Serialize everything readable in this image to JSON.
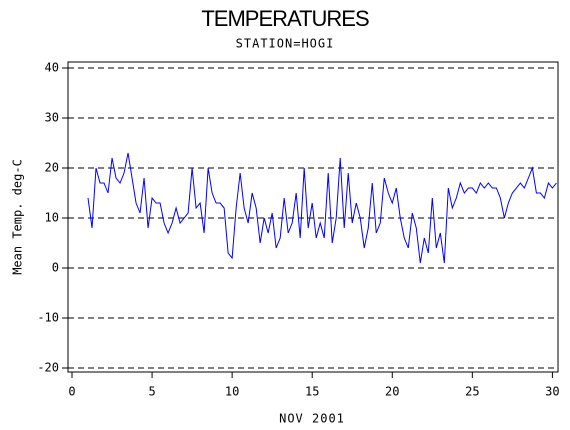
{
  "chart_data": {
    "type": "line",
    "title": "TEMPERATURES",
    "subtitle": "STATION=HOGI",
    "x_label": "NOV 2001",
    "y_label": "Mean Temp. deg-C",
    "xlim": [
      -0.25,
      30.35
    ],
    "ylim": [
      -20.8,
      41.2
    ],
    "xticks": [
      0,
      5,
      10,
      15,
      20,
      25,
      30
    ],
    "yticks": [
      -20,
      -10,
      0,
      10,
      20,
      30,
      40
    ],
    "grid": true,
    "series": [
      {
        "name": "Mean Temp",
        "color": "#0000ff",
        "x": [
          1.0,
          1.25,
          1.5,
          1.75,
          2.0,
          2.25,
          2.5,
          2.75,
          3.0,
          3.25,
          3.5,
          3.75,
          4.0,
          4.25,
          4.5,
          4.75,
          5.0,
          5.25,
          5.5,
          5.75,
          6.0,
          6.25,
          6.5,
          6.75,
          7.0,
          7.25,
          7.5,
          7.75,
          8.0,
          8.25,
          8.5,
          8.75,
          9.0,
          9.25,
          9.5,
          9.75,
          10.0,
          10.25,
          10.5,
          10.75,
          11.0,
          11.25,
          11.5,
          11.75,
          12.0,
          12.25,
          12.5,
          12.75,
          13.0,
          13.25,
          13.5,
          13.75,
          14.0,
          14.25,
          14.5,
          14.75,
          15.0,
          15.25,
          15.5,
          15.75,
          16.0,
          16.25,
          16.5,
          16.75,
          17.0,
          17.25,
          17.5,
          17.75,
          18.0,
          18.25,
          18.5,
          18.75,
          19.0,
          19.25,
          19.5,
          19.75,
          20.0,
          20.25,
          20.5,
          20.75,
          21.0,
          21.25,
          21.5,
          21.75,
          22.0,
          22.25,
          22.5,
          22.75,
          23.0,
          23.25,
          23.5,
          23.75,
          24.0,
          24.25,
          24.5,
          24.75,
          25.0,
          25.25,
          25.5,
          25.75,
          26.0,
          26.25,
          26.5,
          26.75,
          27.0,
          27.25,
          27.5,
          27.75,
          28.0,
          28.25,
          28.5,
          28.75,
          29.0,
          29.25,
          29.5,
          29.75,
          30.0,
          30.25
        ],
        "values": [
          14,
          8,
          20,
          17,
          17,
          15,
          22,
          18,
          17,
          19,
          23,
          18,
          13,
          11,
          18,
          8,
          14,
          13,
          13,
          9,
          7,
          9,
          12,
          9,
          10,
          11,
          20,
          12,
          13,
          7,
          20,
          15,
          13,
          13,
          12,
          3,
          2,
          12,
          19,
          12,
          9,
          15,
          12,
          5,
          10,
          7,
          11,
          4,
          6,
          14,
          7,
          9,
          15,
          6,
          20,
          8,
          13,
          6,
          9,
          6,
          19,
          5,
          10,
          22,
          8,
          19,
          9,
          13,
          10,
          4,
          8,
          17,
          7,
          9,
          18,
          15,
          13,
          16,
          10,
          6,
          4,
          11,
          8,
          1,
          6,
          3,
          14,
          4,
          7,
          1,
          16,
          12,
          14,
          17,
          15,
          16,
          16,
          15,
          17,
          16,
          17,
          16,
          16,
          14,
          10,
          13,
          15,
          16,
          17,
          16,
          18,
          20,
          15,
          15,
          14,
          17,
          16,
          17
        ]
      }
    ]
  }
}
